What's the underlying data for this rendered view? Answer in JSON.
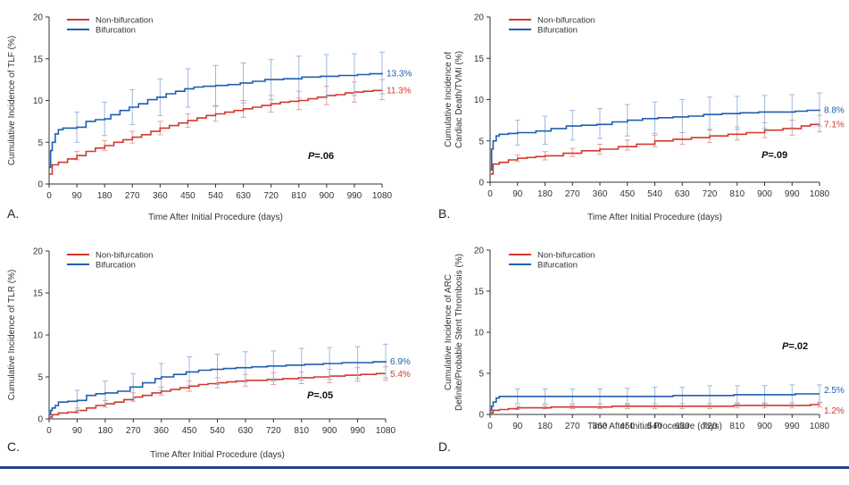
{
  "figure": {
    "x_axis_label": "Time After Initial Procedure (days)",
    "legend_labels": [
      "Non-bifurcation",
      "Bifurcation"
    ],
    "colors": {
      "non_bifurcation": "#d03a2f",
      "bifurcation": "#1f5eb0",
      "errorbar_non": "#e6a098",
      "errorbar_bif": "#9db8de",
      "axis": "#333333",
      "rule": "#2b3f8f"
    }
  },
  "chart_data": [
    {
      "type": "line",
      "panel_letter": "A.",
      "ylabel": [
        "Cumulative Incidence of TLF (%)"
      ],
      "ylim": [
        0,
        20
      ],
      "yticks": [
        0,
        5,
        10,
        15,
        20
      ],
      "xlim": [
        0,
        1080
      ],
      "xticks": [
        0,
        90,
        180,
        270,
        360,
        450,
        540,
        630,
        720,
        810,
        900,
        990,
        1080
      ],
      "p_value": "=.06",
      "series": [
        {
          "name": "Non-bifurcation",
          "end_label": "11.3%",
          "x": [
            0,
            10,
            30,
            60,
            90,
            120,
            150,
            180,
            210,
            240,
            270,
            300,
            330,
            360,
            390,
            420,
            450,
            480,
            510,
            540,
            570,
            600,
            630,
            660,
            690,
            720,
            750,
            780,
            810,
            840,
            870,
            900,
            930,
            960,
            990,
            1020,
            1050,
            1080
          ],
          "y": [
            1.2,
            2.3,
            2.6,
            3.0,
            3.4,
            3.9,
            4.3,
            4.6,
            5.0,
            5.3,
            5.6,
            5.9,
            6.3,
            6.7,
            7.0,
            7.3,
            7.6,
            7.9,
            8.2,
            8.4,
            8.6,
            8.8,
            9.0,
            9.2,
            9.4,
            9.6,
            9.8,
            9.9,
            10.0,
            10.2,
            10.4,
            10.6,
            10.7,
            10.9,
            11.0,
            11.1,
            11.2,
            11.3
          ],
          "err_x": [
            90,
            180,
            270,
            360,
            450,
            540,
            630,
            720,
            810,
            900,
            990,
            1080
          ],
          "err_y": [
            3.4,
            4.6,
            5.6,
            6.7,
            7.6,
            8.4,
            9.0,
            9.6,
            10.0,
            10.6,
            11.0,
            11.3
          ],
          "err_half": [
            0.5,
            0.6,
            0.7,
            0.8,
            0.8,
            0.9,
            1.0,
            1.0,
            1.1,
            1.1,
            1.2,
            1.2
          ]
        },
        {
          "name": "Bifurcation",
          "end_label": "13.3%",
          "x": [
            0,
            5,
            10,
            20,
            30,
            45,
            60,
            90,
            120,
            150,
            180,
            200,
            230,
            260,
            290,
            320,
            350,
            380,
            410,
            440,
            470,
            500,
            540,
            580,
            620,
            660,
            700,
            760,
            820,
            880,
            940,
            1000,
            1040,
            1080
          ],
          "y": [
            2.0,
            4.0,
            5.0,
            6.0,
            6.5,
            6.7,
            6.7,
            6.8,
            7.5,
            7.7,
            7.8,
            8.3,
            8.8,
            9.2,
            9.6,
            10.1,
            10.4,
            10.8,
            11.1,
            11.4,
            11.6,
            11.7,
            11.8,
            11.9,
            12.1,
            12.3,
            12.5,
            12.6,
            12.8,
            12.9,
            13.0,
            13.1,
            13.2,
            13.3
          ],
          "err_x": [
            90,
            180,
            270,
            360,
            450,
            540,
            630,
            720,
            810,
            900,
            990,
            1080
          ],
          "err_y": [
            6.8,
            7.8,
            9.2,
            10.4,
            11.5,
            11.8,
            12.1,
            12.5,
            12.8,
            13.0,
            13.1,
            13.3
          ],
          "err_half": [
            1.8,
            2.0,
            2.1,
            2.2,
            2.3,
            2.4,
            2.4,
            2.4,
            2.5,
            2.5,
            2.5,
            2.5
          ]
        }
      ]
    },
    {
      "type": "line",
      "panel_letter": "B.",
      "ylabel": [
        "Cumulative Incidence of",
        "Cardiac Death/TVMI (%)"
      ],
      "ylim": [
        0,
        20
      ],
      "yticks": [
        0,
        5,
        10,
        15,
        20
      ],
      "xlim": [
        0,
        1080
      ],
      "xticks": [
        0,
        90,
        180,
        270,
        360,
        450,
        540,
        630,
        720,
        810,
        900,
        990,
        1080
      ],
      "p_value": "=.09",
      "series": [
        {
          "name": "Non-bifurcation",
          "end_label": "7.1%",
          "x": [
            0,
            10,
            30,
            60,
            90,
            120,
            150,
            180,
            240,
            300,
            360,
            420,
            480,
            540,
            600,
            660,
            720,
            780,
            840,
            900,
            960,
            1020,
            1050,
            1080
          ],
          "y": [
            1.0,
            2.2,
            2.4,
            2.7,
            2.9,
            3.0,
            3.1,
            3.2,
            3.5,
            3.8,
            4.0,
            4.3,
            4.6,
            5.0,
            5.2,
            5.4,
            5.6,
            5.8,
            6.0,
            6.3,
            6.5,
            6.8,
            7.0,
            7.1
          ],
          "err_x": [
            90,
            180,
            270,
            360,
            450,
            540,
            630,
            720,
            810,
            900,
            990,
            1080
          ],
          "err_y": [
            2.9,
            3.2,
            3.6,
            4.0,
            4.5,
            5.0,
            5.3,
            5.6,
            5.9,
            6.3,
            6.6,
            7.1
          ],
          "err_half": [
            0.4,
            0.5,
            0.5,
            0.6,
            0.6,
            0.7,
            0.7,
            0.8,
            0.8,
            0.9,
            0.9,
            1.0
          ]
        },
        {
          "name": "Bifurcation",
          "end_label": "8.8%",
          "x": [
            0,
            5,
            10,
            20,
            30,
            60,
            90,
            150,
            200,
            250,
            300,
            350,
            400,
            450,
            500,
            550,
            600,
            650,
            700,
            760,
            820,
            880,
            940,
            1000,
            1040,
            1080
          ],
          "y": [
            1.5,
            4.0,
            5.0,
            5.6,
            5.8,
            5.9,
            6.0,
            6.2,
            6.5,
            6.8,
            6.9,
            7.0,
            7.3,
            7.5,
            7.7,
            7.8,
            7.9,
            8.0,
            8.2,
            8.3,
            8.4,
            8.5,
            8.5,
            8.6,
            8.7,
            8.8
          ],
          "err_x": [
            90,
            180,
            270,
            360,
            450,
            540,
            630,
            720,
            810,
            900,
            990,
            1080
          ],
          "err_y": [
            6.0,
            6.3,
            6.9,
            7.1,
            7.5,
            7.8,
            8.0,
            8.3,
            8.4,
            8.5,
            8.6,
            8.8
          ],
          "err_half": [
            1.5,
            1.7,
            1.8,
            1.8,
            1.9,
            1.9,
            2.0,
            2.0,
            2.0,
            2.0,
            2.0,
            2.0
          ]
        }
      ]
    },
    {
      "type": "line",
      "panel_letter": "C.",
      "ylabel": [
        "Cumulative Incidence of TLR (%)"
      ],
      "ylim": [
        0,
        20
      ],
      "yticks": [
        0,
        5,
        10,
        15,
        20
      ],
      "xlim": [
        0,
        1080
      ],
      "xticks": [
        0,
        90,
        180,
        270,
        360,
        450,
        540,
        630,
        720,
        810,
        900,
        990,
        1080
      ],
      "p_value": "=.05",
      "series": [
        {
          "name": "Non-bifurcation",
          "end_label": "5.4%",
          "x": [
            0,
            10,
            30,
            60,
            90,
            120,
            150,
            180,
            210,
            240,
            270,
            300,
            330,
            360,
            390,
            420,
            450,
            480,
            510,
            540,
            570,
            600,
            630,
            660,
            700,
            750,
            800,
            850,
            900,
            950,
            1000,
            1050,
            1080
          ],
          "y": [
            0.2,
            0.5,
            0.7,
            0.8,
            1.0,
            1.3,
            1.6,
            1.8,
            2.0,
            2.3,
            2.6,
            2.8,
            3.1,
            3.3,
            3.5,
            3.7,
            3.9,
            4.1,
            4.2,
            4.3,
            4.4,
            4.5,
            4.6,
            4.6,
            4.7,
            4.8,
            4.9,
            5.0,
            5.1,
            5.2,
            5.3,
            5.4,
            5.4
          ],
          "err_x": [
            90,
            180,
            270,
            360,
            450,
            540,
            630,
            720,
            810,
            900,
            990,
            1080
          ],
          "err_y": [
            1.0,
            1.8,
            2.6,
            3.3,
            3.9,
            4.3,
            4.6,
            4.8,
            4.9,
            5.1,
            5.3,
            5.4
          ],
          "err_half": [
            0.3,
            0.4,
            0.5,
            0.5,
            0.6,
            0.6,
            0.7,
            0.7,
            0.7,
            0.8,
            0.8,
            0.8
          ]
        },
        {
          "name": "Bifurcation",
          "end_label": "6.9%",
          "x": [
            0,
            5,
            10,
            20,
            30,
            60,
            90,
            120,
            150,
            180,
            220,
            260,
            300,
            340,
            360,
            400,
            440,
            480,
            520,
            560,
            600,
            650,
            700,
            760,
            820,
            880,
            940,
            1000,
            1040,
            1080
          ],
          "y": [
            0.5,
            1.0,
            1.3,
            1.6,
            2.0,
            2.1,
            2.2,
            2.8,
            3.0,
            3.1,
            3.3,
            3.8,
            4.3,
            4.8,
            5.0,
            5.3,
            5.6,
            5.8,
            5.9,
            6.0,
            6.1,
            6.2,
            6.3,
            6.4,
            6.5,
            6.6,
            6.7,
            6.7,
            6.8,
            6.9
          ],
          "err_x": [
            90,
            180,
            270,
            360,
            450,
            540,
            630,
            720,
            810,
            900,
            990,
            1080
          ],
          "err_y": [
            2.2,
            3.1,
            3.9,
            5.0,
            5.7,
            5.9,
            6.2,
            6.3,
            6.5,
            6.6,
            6.7,
            6.9
          ],
          "err_half": [
            1.2,
            1.4,
            1.5,
            1.6,
            1.7,
            1.8,
            1.8,
            1.8,
            1.9,
            1.9,
            1.9,
            2.0
          ]
        }
      ]
    },
    {
      "type": "line",
      "panel_letter": "D.",
      "ylabel": [
        "Cumulative Incidence of ARC",
        "Definite/Probable Stent Thrombosis (%)"
      ],
      "ylim": [
        0,
        20
      ],
      "yticks": [
        0,
        5,
        10,
        15,
        20
      ],
      "xlim": [
        0,
        1080
      ],
      "xticks": [
        0,
        90,
        180,
        270,
        360,
        450,
        540,
        630,
        720,
        810,
        900,
        990,
        1080
      ],
      "p_value": "=.02",
      "series": [
        {
          "name": "Non-bifurcation",
          "end_label": "1.2%",
          "x": [
            0,
            10,
            30,
            60,
            90,
            150,
            200,
            300,
            400,
            500,
            600,
            700,
            800,
            900,
            1000,
            1050,
            1080
          ],
          "y": [
            0.2,
            0.5,
            0.6,
            0.7,
            0.8,
            0.8,
            0.9,
            0.9,
            1.0,
            1.0,
            1.0,
            1.0,
            1.1,
            1.1,
            1.1,
            1.2,
            1.2
          ],
          "err_x": [
            90,
            180,
            270,
            360,
            450,
            540,
            630,
            720,
            810,
            900,
            990,
            1080
          ],
          "err_y": [
            0.8,
            0.9,
            0.9,
            1.0,
            1.0,
            1.0,
            1.0,
            1.0,
            1.1,
            1.1,
            1.1,
            1.2
          ],
          "err_half": [
            0.2,
            0.2,
            0.2,
            0.3,
            0.3,
            0.3,
            0.3,
            0.3,
            0.3,
            0.3,
            0.3,
            0.3
          ]
        },
        {
          "name": "Bifurcation",
          "end_label": "2.5%",
          "x": [
            0,
            5,
            10,
            20,
            30,
            60,
            90,
            200,
            400,
            600,
            700,
            800,
            900,
            1000,
            1080
          ],
          "y": [
            0.5,
            1.0,
            1.5,
            2.0,
            2.2,
            2.2,
            2.2,
            2.2,
            2.2,
            2.3,
            2.3,
            2.4,
            2.4,
            2.5,
            2.5
          ],
          "err_x": [
            90,
            180,
            270,
            360,
            450,
            540,
            630,
            720,
            810,
            900,
            990,
            1080
          ],
          "err_y": [
            2.2,
            2.2,
            2.2,
            2.2,
            2.2,
            2.3,
            2.3,
            2.4,
            2.4,
            2.4,
            2.5,
            2.5
          ],
          "err_half": [
            0.9,
            0.9,
            0.9,
            0.9,
            1.0,
            1.0,
            1.0,
            1.1,
            1.1,
            1.1,
            1.1,
            1.1
          ]
        }
      ]
    }
  ]
}
